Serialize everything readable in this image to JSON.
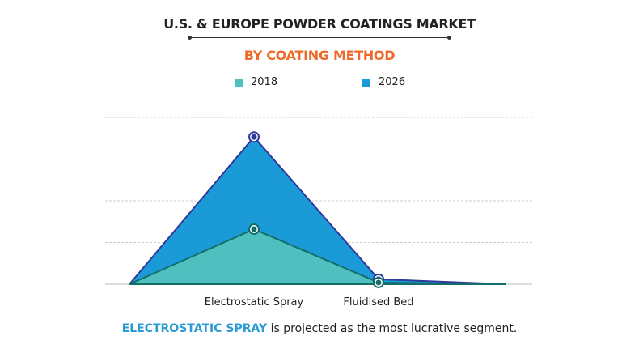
{
  "chart_data": {
    "type": "area",
    "title": "U.S. & EUROPE POWDER COATINGS MARKET",
    "subtitle": "BY COATING METHOD",
    "categories": [
      "Electrostatic Spray",
      "Fluidised Bed"
    ],
    "series": [
      {
        "name": "2018",
        "values": [
          1.32,
          0.04
        ],
        "color": "#4fbfc0",
        "line_color": "#136e6a"
      },
      {
        "name": "2026",
        "values": [
          3.53,
          0.12
        ],
        "color": "#1b9ad8",
        "line_color": "#2e3a9a"
      }
    ],
    "ylim": [
      0,
      4
    ],
    "y_ticks_shown": false,
    "grid": true,
    "legend_position": "top"
  },
  "footer": {
    "highlight": "ELECTROSTATIC SPRAY",
    "text": " is projected as the most lucrative segment."
  }
}
